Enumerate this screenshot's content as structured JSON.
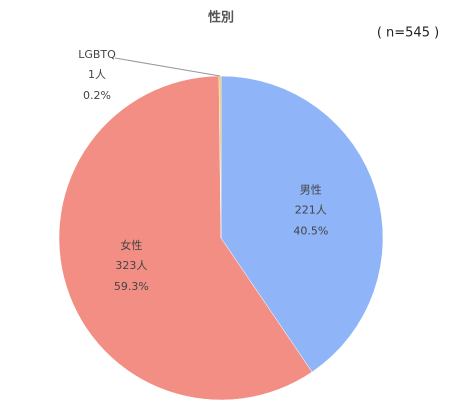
{
  "chart_data": {
    "type": "pie",
    "title": "性別",
    "annotation": "( n=545 )",
    "categories": [
      "男性",
      "女性",
      "LGBTQ"
    ],
    "values": [
      40.5,
      59.3,
      0.2
    ],
    "value_labels": [
      "40.5%",
      "59.3%",
      "0.2%"
    ],
    "count_labels": [
      "221人",
      "323人",
      "1人"
    ],
    "colors": [
      "#8fb4f8",
      "#f28e84",
      "#f5c242"
    ]
  }
}
